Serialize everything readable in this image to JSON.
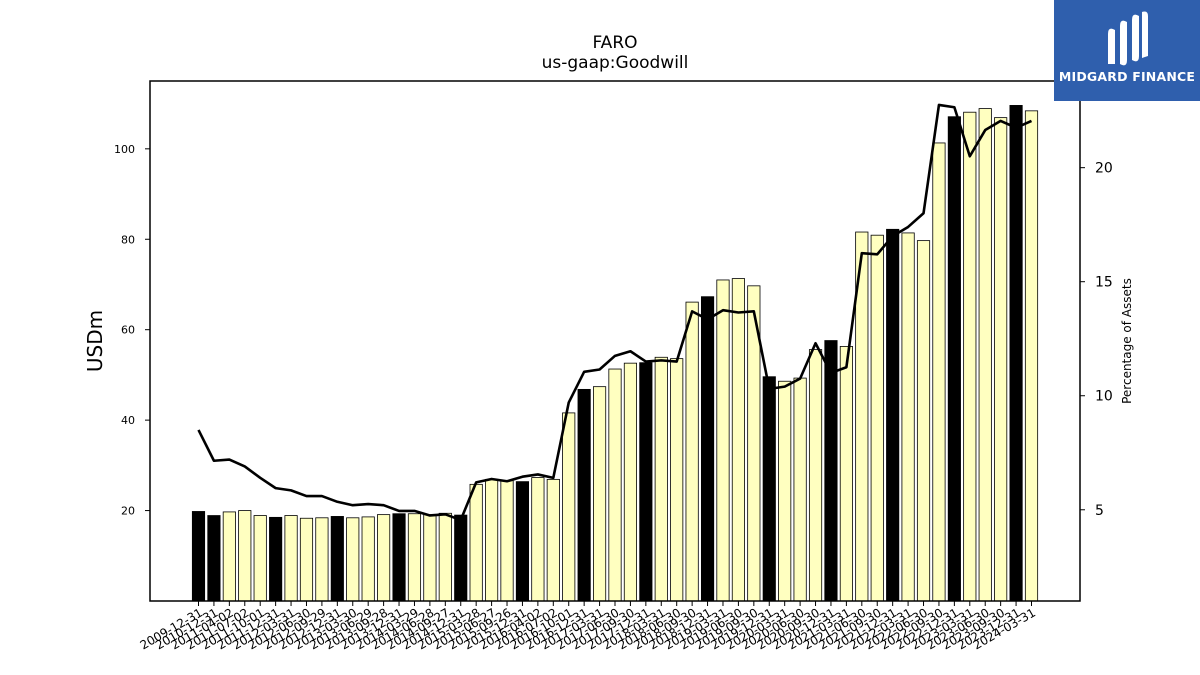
{
  "brand": {
    "name": "MIDGARD FINANCE",
    "logo_icon": "midgard-m-logo-icon",
    "background": "#2f5fad"
  },
  "chart_data": {
    "type": "bar",
    "title": "FARO",
    "subtitle": "us-gaap:Goodwill",
    "ylabel": "USDm",
    "y2label": "Percentage of Assets",
    "ylim": [
      0,
      115
    ],
    "y2lim": [
      1.0,
      23.8
    ],
    "yticks": [
      20,
      40,
      60,
      80,
      100
    ],
    "y2ticks": [
      5,
      10,
      15,
      20
    ],
    "grid": false,
    "legend": "none",
    "colors": {
      "bar_default": "#ffffc0",
      "bar_highlight": "#000000",
      "bar_edge": "#000000",
      "line": "#000000"
    },
    "categories": [
      "2009-12-31",
      "2010-12-31",
      "2011-04-02",
      "2011-07-02",
      "2011-10-01",
      "2011-12-31",
      "2012-03-31",
      "2012-06-30",
      "2012-09-29",
      "2012-12-31",
      "2013-03-30",
      "2013-06-29",
      "2013-09-28",
      "2013-12-31",
      "2014-03-29",
      "2014-06-28",
      "2014-09-27",
      "2014-12-31",
      "2015-03-28",
      "2015-06-27",
      "2015-09-26",
      "2015-12-31",
      "2016-04-02",
      "2016-07-02",
      "2016-10-01",
      "2016-12-31",
      "2017-03-31",
      "2017-06-30",
      "2017-09-30",
      "2017-12-31",
      "2018-03-31",
      "2018-06-30",
      "2018-09-30",
      "2018-12-31",
      "2019-03-31",
      "2019-06-30",
      "2019-09-30",
      "2019-12-31",
      "2020-03-31",
      "2020-06-30",
      "2020-09-30",
      "2020-12-31",
      "2021-03-31",
      "2021-06-30",
      "2021-09-30",
      "2021-12-31",
      "2022-03-31",
      "2022-06-30",
      "2022-09-30",
      "2022-12-31",
      "2023-03-31",
      "2023-06-30",
      "2023-09-30",
      "2023-12-31",
      "2024-03-31"
    ],
    "series": [
      {
        "kind": "bar",
        "values": [
          19.8,
          18.9,
          19.7,
          20.0,
          18.9,
          18.5,
          18.9,
          18.3,
          18.4,
          18.7,
          18.4,
          18.6,
          19.1,
          19.3,
          19.3,
          19.1,
          19.4,
          19.0,
          25.8,
          26.9,
          26.6,
          26.4,
          27.3,
          26.9,
          41.6,
          46.8,
          47.4,
          51.3,
          52.6,
          52.7,
          53.9,
          53.6,
          66.1,
          67.3,
          71.0,
          71.3,
          69.7,
          49.6,
          48.6,
          49.3,
          55.6,
          57.6,
          56.3,
          81.6,
          80.9,
          82.2,
          81.4,
          79.7,
          101.3,
          107.1,
          108.1,
          108.9,
          106.9,
          109.6,
          108.4
        ],
        "highlight": [
          true,
          true,
          false,
          false,
          false,
          true,
          false,
          false,
          false,
          true,
          false,
          false,
          false,
          true,
          false,
          false,
          false,
          true,
          false,
          false,
          false,
          true,
          false,
          false,
          false,
          true,
          false,
          false,
          false,
          true,
          false,
          false,
          false,
          true,
          false,
          false,
          false,
          true,
          false,
          false,
          false,
          true,
          false,
          false,
          false,
          true,
          false,
          false,
          false,
          true,
          false,
          false,
          false,
          true,
          false
        ]
      },
      {
        "kind": "line",
        "axis": "right",
        "values": [
          8.5,
          7.15,
          7.2,
          6.9,
          6.4,
          5.95,
          5.85,
          5.6,
          5.6,
          5.35,
          5.2,
          5.25,
          5.2,
          4.95,
          4.95,
          4.75,
          4.8,
          4.55,
          6.2,
          6.35,
          6.25,
          6.45,
          6.55,
          6.4,
          9.7,
          11.05,
          11.15,
          11.75,
          11.95,
          11.5,
          11.55,
          11.5,
          13.7,
          13.35,
          13.75,
          13.65,
          13.7,
          10.3,
          10.4,
          10.75,
          12.3,
          11.0,
          11.25,
          16.25,
          16.2,
          17.0,
          17.4,
          18.0,
          22.75,
          22.65,
          20.5,
          21.65,
          22.05,
          21.75,
          22.05
        ]
      }
    ]
  }
}
